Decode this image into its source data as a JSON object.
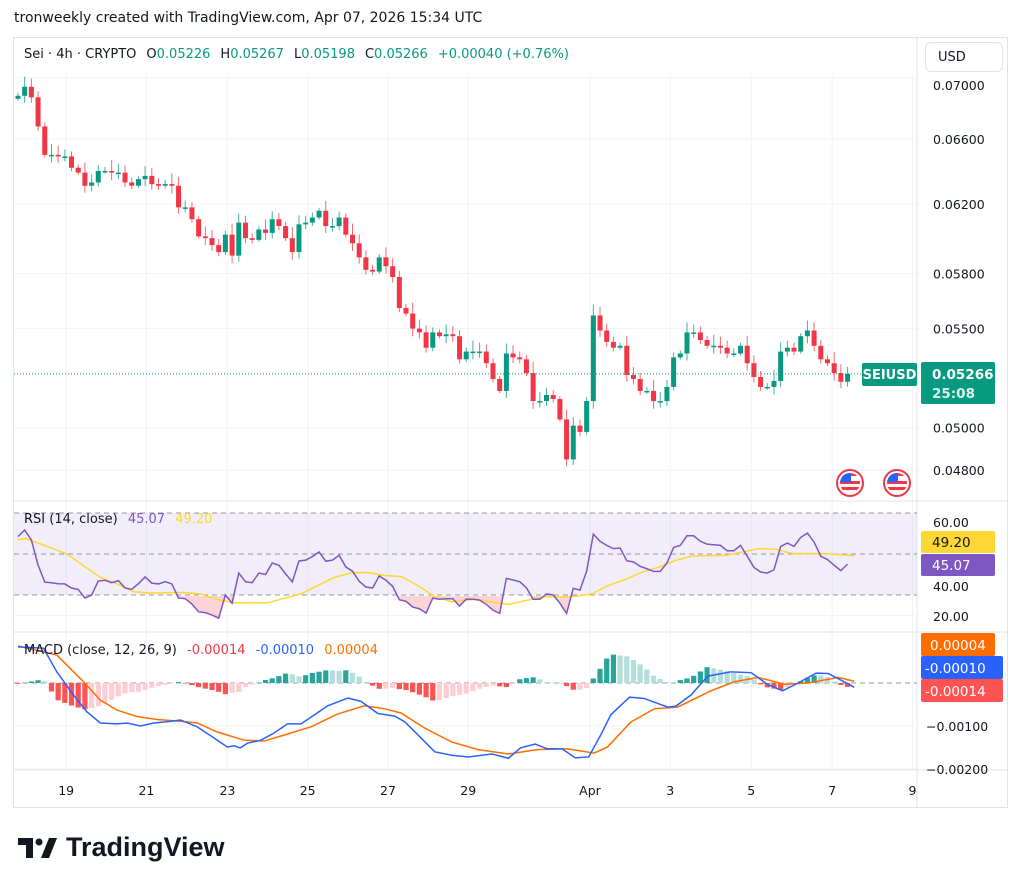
{
  "caption": "tronweekly created with TradingView.com, Apr 07, 2026 15:34 UTC",
  "legend": {
    "symbol": "Sei · 4h · CRYPTO",
    "open_label": "O",
    "open": "0.05226",
    "high_label": "H",
    "high": "0.05267",
    "low_label": "L",
    "low": "0.05198",
    "close_label": "C",
    "close": "0.05266",
    "change": "+0.00040 (+0.76%)"
  },
  "currency_button": "USD",
  "price_tag": {
    "symbol": "SEIUSD",
    "price": "0.05266",
    "countdown": "25:08"
  },
  "rsi_legend": {
    "title": "RSI (14, close)",
    "value": "45.07",
    "ma_value": "49.20"
  },
  "macd_legend": {
    "title": "MACD (close, 12, 26, 9)",
    "hist": "-0.00014",
    "macd": "-0.00010",
    "signal": "0.00004"
  },
  "logo_text": "TradingView",
  "colors": {
    "up": "#089981",
    "down": "#f23645",
    "rsi": "#7e57c2",
    "rsi_ma": "#fdd835",
    "macd": "#2962ff",
    "signal": "#ff6d00"
  },
  "chart_data": [
    {
      "type": "candlestick",
      "title": "Sei · 4h · CRYPTO",
      "scale": "log",
      "ylim": [
        0.0474,
        0.0712
      ],
      "y_ticks": [
        "0.07000",
        "0.06600",
        "0.06200",
        "0.05800",
        "0.05500",
        "0.05000",
        "0.04800"
      ],
      "x_ticks": [
        {
          "label": "19",
          "index": 8.2
        },
        {
          "label": "21",
          "index": 20.2
        },
        {
          "label": "23",
          "index": 32.3
        },
        {
          "label": "25",
          "index": 44.3
        },
        {
          "label": "27",
          "index": 56.3
        },
        {
          "label": "29",
          "index": 68.3
        },
        {
          "label": "Apr",
          "index": 86.5
        },
        {
          "label": "3",
          "index": 98.5
        },
        {
          "label": "5",
          "index": 110.6
        },
        {
          "label": "7",
          "index": 122.7
        },
        {
          "label": "9",
          "index": 134.7
        }
      ],
      "first_open": 0.0686,
      "closes": [
        0.0688,
        0.0694,
        0.0687,
        0.0668,
        0.065,
        0.065,
        0.0649,
        0.0649,
        0.0642,
        0.0639,
        0.0631,
        0.0633,
        0.064,
        0.064,
        0.0639,
        0.0639,
        0.0633,
        0.0631,
        0.0635,
        0.0637,
        0.0632,
        0.0631,
        0.0632,
        0.0631,
        0.0618,
        0.0618,
        0.0611,
        0.0601,
        0.06,
        0.0596,
        0.0592,
        0.0602,
        0.059,
        0.0609,
        0.06,
        0.0599,
        0.0605,
        0.0603,
        0.0611,
        0.0607,
        0.06,
        0.0592,
        0.0608,
        0.0609,
        0.0612,
        0.0616,
        0.0607,
        0.0607,
        0.0612,
        0.0602,
        0.0597,
        0.0589,
        0.0582,
        0.0581,
        0.0589,
        0.0584,
        0.0578,
        0.0561,
        0.0558,
        0.055,
        0.0548,
        0.054,
        0.0548,
        0.0546,
        0.0547,
        0.0546,
        0.0534,
        0.0538,
        0.0538,
        0.0538,
        0.0532,
        0.0524,
        0.0518,
        0.0537,
        0.0535,
        0.0534,
        0.0527,
        0.0513,
        0.0513,
        0.0516,
        0.0514,
        0.0504,
        0.0485,
        0.0501,
        0.0498,
        0.0513,
        0.0557,
        0.0549,
        0.0543,
        0.054,
        0.0541,
        0.0526,
        0.0524,
        0.0518,
        0.0518,
        0.0513,
        0.0513,
        0.052,
        0.0535,
        0.0537,
        0.0548,
        0.0548,
        0.0544,
        0.0541,
        0.0541,
        0.054,
        0.0537,
        0.0537,
        0.0541,
        0.0532,
        0.0525,
        0.052,
        0.052,
        0.0523,
        0.0538,
        0.054,
        0.0538,
        0.0546,
        0.0549,
        0.0541,
        0.0534,
        0.0532,
        0.0527,
        0.05226,
        0.05266
      ],
      "last_price": 0.05266
    },
    {
      "type": "line",
      "title": "RSI (14, close)",
      "ylim": [
        15,
        75
      ],
      "y_ticks": [
        "60.00",
        "40.00",
        "20.00"
      ],
      "bands": [
        30,
        50,
        70
      ],
      "rsi": [
        58.5,
        61.7,
        56.8,
        44.6,
        36.3,
        36,
        35.5,
        35.4,
        33.4,
        32.7,
        28.5,
        30,
        36.8,
        37.2,
        36,
        37,
        33.4,
        32.8,
        35.5,
        38.8,
        35.8,
        35.4,
        36.5,
        35.4,
        28.5,
        28.2,
        25.6,
        21.8,
        21.4,
        20.2,
        18.7,
        30,
        26,
        40.7,
        36.5,
        36,
        40.7,
        40,
        45.6,
        44.5,
        40.3,
        36.4,
        46.6,
        47,
        48.7,
        51,
        46.5,
        47,
        49.4,
        43.7,
        41.6,
        36.7,
        33.9,
        33.4,
        39.3,
        37.2,
        34.2,
        27.7,
        26.9,
        24.1,
        23.3,
        21.2,
        28.5,
        27.9,
        28.2,
        28.2,
        24.6,
        28,
        27.9,
        27.5,
        25.4,
        22.6,
        21,
        38.1,
        37.3,
        36.5,
        33.5,
        27.9,
        27.9,
        30.5,
        30,
        26,
        21,
        33.2,
        32.4,
        41.7,
        59.7,
        56.2,
        54.2,
        52.6,
        52.9,
        46.7,
        46.1,
        44,
        42.8,
        41.5,
        41.5,
        45.6,
        53.2,
        54.2,
        58.9,
        58.9,
        56.2,
        54.8,
        54.5,
        54.2,
        51.6,
        51.6,
        54.2,
        48.9,
        43.5,
        41.2,
        40.7,
        42.3,
        53.7,
        55.3,
        53.7,
        58.1,
        60.2,
        55.8,
        48.9,
        47.3,
        44.5,
        41.9,
        45.07
      ],
      "rsi_ma": [
        [
          0,
          57
        ],
        [
          1.1,
          57.6
        ],
        [
          4.8,
          53.2
        ],
        [
          7.3,
          50
        ],
        [
          9.8,
          44.3
        ],
        [
          12.3,
          38.6
        ],
        [
          14.8,
          35.4
        ],
        [
          17.3,
          31.6
        ],
        [
          19.8,
          31
        ],
        [
          24.8,
          31.3
        ],
        [
          27.3,
          30.5
        ],
        [
          29.8,
          27.8
        ],
        [
          32.3,
          26.2
        ],
        [
          37.3,
          26.2
        ],
        [
          42.3,
          30.5
        ],
        [
          47.3,
          38.6
        ],
        [
          49.8,
          40.8
        ],
        [
          52.3,
          41
        ],
        [
          54.8,
          39.5
        ],
        [
          57.3,
          39
        ],
        [
          59.8,
          34.5
        ],
        [
          62.3,
          29.3
        ],
        [
          64.8,
          26.7
        ],
        [
          68.3,
          27.9
        ],
        [
          73.3,
          25.4
        ],
        [
          78.3,
          29
        ],
        [
          83.3,
          29.3
        ],
        [
          85.8,
          30.6
        ],
        [
          88.3,
          34.7
        ],
        [
          90.8,
          37.6
        ],
        [
          93.3,
          41.2
        ],
        [
          95.8,
          43.6
        ],
        [
          98.3,
          46.9
        ],
        [
          100.8,
          49
        ],
        [
          105.8,
          49.3
        ],
        [
          110.8,
          52.6
        ],
        [
          113.3,
          52.3
        ],
        [
          115.8,
          50.2
        ],
        [
          120.8,
          50.2
        ],
        [
          125,
          49.2
        ]
      ],
      "last_rsi": 45.07,
      "last_ma": 49.2
    },
    {
      "type": "line",
      "title": "MACD (close, 12, 26, 9)",
      "ylim": [
        -0.00215,
        0.00095
      ],
      "y_ticks": [
        "-0.00100",
        "-0.00200"
      ],
      "macd": [
        [
          0,
          0.00084
        ],
        [
          3.8,
          0.00081
        ],
        [
          5.8,
          0.00026
        ],
        [
          8.3,
          -0.00028
        ],
        [
          10.3,
          -0.00067
        ],
        [
          12.3,
          -0.00093
        ],
        [
          14.8,
          -0.00095
        ],
        [
          16.3,
          -0.00093
        ],
        [
          18.3,
          -0.001
        ],
        [
          20.3,
          -0.00093
        ],
        [
          22.3,
          -0.0009
        ],
        [
          24.3,
          -0.00086
        ],
        [
          26.8,
          -0.00102
        ],
        [
          29.3,
          -0.00128
        ],
        [
          31.3,
          -0.00149
        ],
        [
          32.3,
          -0.00146
        ],
        [
          33.2,
          -0.00151
        ],
        [
          34.3,
          -0.0014
        ],
        [
          36.3,
          -0.00133
        ],
        [
          38.3,
          -0.00116
        ],
        [
          40.3,
          -0.00095
        ],
        [
          42.3,
          -0.00095
        ],
        [
          44.3,
          -0.00074
        ],
        [
          46.3,
          -0.00053
        ],
        [
          49.3,
          -0.00035
        ],
        [
          51.3,
          -0.00043
        ],
        [
          53.8,
          -0.00071
        ],
        [
          56.3,
          -0.00077
        ],
        [
          57.8,
          -0.0009
        ],
        [
          59.8,
          -0.00121
        ],
        [
          62.3,
          -0.0016
        ],
        [
          64.8,
          -0.00168
        ],
        [
          67.3,
          -0.00172
        ],
        [
          70.8,
          -0.00165
        ],
        [
          73.3,
          -0.00175
        ],
        [
          75.1,
          -0.00151
        ],
        [
          77.3,
          -0.00142
        ],
        [
          79.1,
          -0.00153
        ],
        [
          81.3,
          -0.00153
        ],
        [
          83.3,
          -0.00174
        ],
        [
          85.3,
          -0.00172
        ],
        [
          87.1,
          -0.00121
        ],
        [
          88.6,
          -0.00074
        ],
        [
          91.4,
          -0.00033
        ],
        [
          93.6,
          -0.00036
        ],
        [
          97.1,
          -0.00056
        ],
        [
          98.3,
          -0.00054
        ],
        [
          100.6,
          -0.00028
        ],
        [
          103.1,
          0.00016
        ],
        [
          106.6,
          0.00026
        ],
        [
          109.6,
          0.00024
        ],
        [
          112.1,
          -4e-05
        ],
        [
          114.3,
          -0.00018
        ],
        [
          116.6,
          0
        ],
        [
          119.3,
          0.00023
        ],
        [
          121.1,
          0.00022
        ],
        [
          123.6,
          2e-05
        ],
        [
          125,
          -0.0001
        ]
      ],
      "signal": [
        [
          0,
          0.00086
        ],
        [
          5.8,
          0.00065
        ],
        [
          9.8,
          3e-05
        ],
        [
          12.3,
          -0.0004
        ],
        [
          14.8,
          -0.00063
        ],
        [
          17.8,
          -0.00078
        ],
        [
          20.8,
          -0.00085
        ],
        [
          24.3,
          -0.00089
        ],
        [
          26.8,
          -0.00093
        ],
        [
          29.8,
          -0.00114
        ],
        [
          33.8,
          -0.00133
        ],
        [
          36.8,
          -0.00135
        ],
        [
          39.8,
          -0.00121
        ],
        [
          43.8,
          -0.00102
        ],
        [
          47.8,
          -0.00072
        ],
        [
          51.8,
          -0.00053
        ],
        [
          54.8,
          -0.0006
        ],
        [
          57.3,
          -0.0007
        ],
        [
          60.8,
          -0.00105
        ],
        [
          64.8,
          -0.00137
        ],
        [
          68.8,
          -0.00155
        ],
        [
          73.3,
          -0.00165
        ],
        [
          77.6,
          -0.00155
        ],
        [
          82.1,
          -0.00153
        ],
        [
          86.1,
          -0.00163
        ],
        [
          88.1,
          -0.00149
        ],
        [
          91.6,
          -0.00091
        ],
        [
          95.1,
          -0.0006
        ],
        [
          98.6,
          -0.00056
        ],
        [
          103.6,
          -0.00018
        ],
        [
          107.1,
          3e-05
        ],
        [
          110.6,
          0.00013
        ],
        [
          114.6,
          -3e-05
        ],
        [
          118.1,
          0
        ],
        [
          122.6,
          0.00013
        ],
        [
          125,
          4e-05
        ]
      ],
      "last_hist": -0.00014
    }
  ]
}
